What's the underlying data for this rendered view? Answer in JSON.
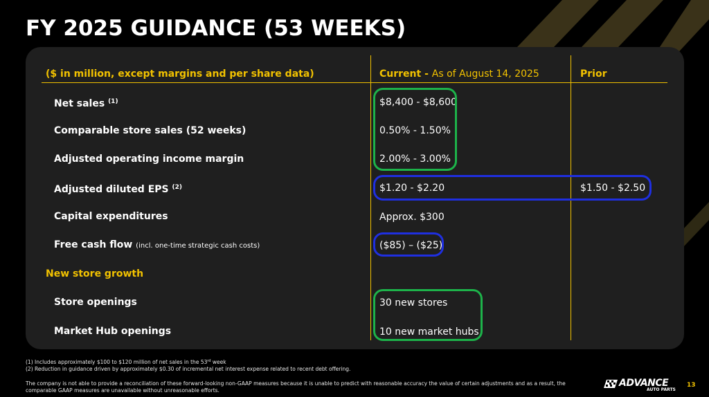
{
  "slide": {
    "title": "FY 2025 GUIDANCE (53 WEEKS)",
    "page_number": "13"
  },
  "colors": {
    "background": "#000000",
    "panel": "#1f1f1f",
    "accent_yellow": "#f2c200",
    "highlight_green": "#1db34a",
    "highlight_blue": "#1f2fe0"
  },
  "table": {
    "header": {
      "units": "($ in million, except margins and per share data)",
      "current_label": "Current -",
      "current_asof": "As of August 14, 2025",
      "prior_label": "Prior"
    },
    "rows": [
      {
        "label": "Net sales",
        "sup": "(1)",
        "current": "$8,400 - $8,600",
        "prior": ""
      },
      {
        "label": "Comparable store sales (52 weeks)",
        "current": "0.50% - 1.50%",
        "prior": ""
      },
      {
        "label": "Adjusted operating income margin",
        "current": "2.00% - 3.00%",
        "prior": ""
      },
      {
        "label": "Adjusted diluted EPS",
        "sup": "(2)",
        "current": "$1.20 - $2.20",
        "prior": "$1.50 - $2.50"
      },
      {
        "label": "Capital expenditures",
        "current": "Approx. $300",
        "prior": ""
      },
      {
        "label": "Free cash flow",
        "note": "(incl. one-time strategic cash costs)",
        "current": "($85) – ($25)",
        "prior": ""
      }
    ],
    "section": "New store growth",
    "growth_rows": [
      {
        "label": "Store openings",
        "current": "30 new stores"
      },
      {
        "label": "Market Hub openings",
        "current": "10 new market hubs"
      }
    ]
  },
  "footnotes": {
    "f1_prefix": "(1)  Includes approximately $100 to $120 million of net sales in the 53",
    "f1_sup": "rd",
    "f1_suffix": " week",
    "f2": "(2)  Reduction in guidance driven by approximately $0.30 of incremental net interest expense related to recent debt offering.",
    "disclaimer_line1": "The company is not able to provide a reconciliation of these forward-looking non-GAAP measures because it is unable to predict with reasonable accuracy the value of certain adjustments and as a result, the",
    "disclaimer_line2": "comparable GAAP measures are unavailable without unreasonable efforts."
  },
  "logo": {
    "word": "ADVANCE",
    "sub": "AUTO PARTS",
    "icon": "checkered-flag-icon"
  }
}
